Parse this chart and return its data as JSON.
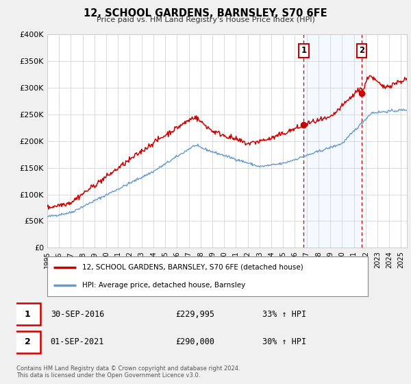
{
  "title": "12, SCHOOL GARDENS, BARNSLEY, S70 6FE",
  "subtitle": "Price paid vs. HM Land Registry's House Price Index (HPI)",
  "ylim": [
    0,
    400000
  ],
  "xlim_start": 1995.0,
  "xlim_end": 2025.5,
  "yticks": [
    0,
    50000,
    100000,
    150000,
    200000,
    250000,
    300000,
    350000,
    400000
  ],
  "ytick_labels": [
    "£0",
    "£50K",
    "£100K",
    "£150K",
    "£200K",
    "£250K",
    "£300K",
    "£350K",
    "£400K"
  ],
  "xticks": [
    1995,
    1996,
    1997,
    1998,
    1999,
    2000,
    2001,
    2002,
    2003,
    2004,
    2005,
    2006,
    2007,
    2008,
    2009,
    2010,
    2011,
    2012,
    2013,
    2014,
    2015,
    2016,
    2017,
    2018,
    2019,
    2020,
    2021,
    2022,
    2023,
    2024,
    2025
  ],
  "sale1_date": 2016.75,
  "sale1_price": 229995,
  "sale1_label": "30-SEP-2016",
  "sale1_price_str": "£229,995",
  "sale1_pct": "33% ↑ HPI",
  "sale2_date": 2021.67,
  "sale2_price": 290000,
  "sale2_label": "01-SEP-2021",
  "sale2_price_str": "£290,000",
  "sale2_pct": "30% ↑ HPI",
  "red_line_color": "#cc0000",
  "blue_line_color": "#6699cc",
  "shaded_color": "#ddeeff",
  "dot_color": "#cc0000",
  "legend_label_red": "12, SCHOOL GARDENS, BARNSLEY, S70 6FE (detached house)",
  "legend_label_blue": "HPI: Average price, detached house, Barnsley",
  "footer_line1": "Contains HM Land Registry data © Crown copyright and database right 2024.",
  "footer_line2": "This data is licensed under the Open Government Licence v3.0.",
  "bg_color": "#f0f0f0",
  "plot_bg_color": "#ffffff",
  "grid_color": "#cccccc",
  "sale_box_color": "#cc0000"
}
